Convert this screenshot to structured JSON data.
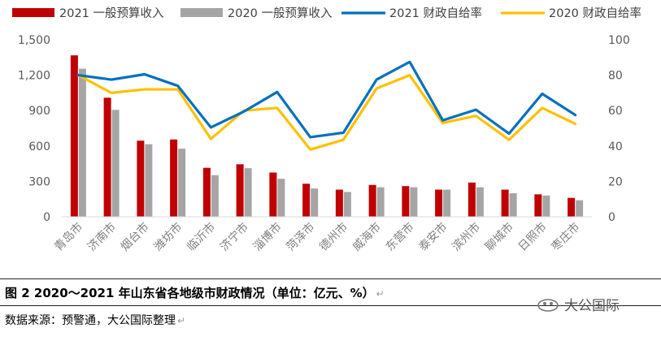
{
  "figure": {
    "caption": "图 2   2020～2021 年山东省各地级市财政情况（单位：亿元、%）",
    "caption_mark": "↵",
    "source": "数据来源：预警通，大公国际整理",
    "source_mark": "↵",
    "brand": "大公国际",
    "brand_icon": "dagong-logo-icon"
  },
  "chart_data": {
    "type": "bar",
    "categories": [
      "青岛市",
      "济南市",
      "烟台市",
      "潍坊市",
      "临沂市",
      "济宁市",
      "淄博市",
      "菏泽市",
      "德州市",
      "威海市",
      "东营市",
      "泰安市",
      "滨州市",
      "聊城市",
      "日照市",
      "枣庄市"
    ],
    "bar_series": [
      {
        "name": "2021 一般预算收入",
        "color": "#C00000",
        "values": [
          1368,
          1009,
          645,
          655,
          415,
          445,
          375,
          280,
          230,
          270,
          260,
          230,
          290,
          230,
          190,
          160
        ]
      },
      {
        "name": "2020 一般预算收入",
        "color": "#A5A5A5",
        "values": [
          1255,
          906,
          615,
          577,
          353,
          412,
          322,
          240,
          210,
          250,
          250,
          230,
          250,
          200,
          180,
          140
        ]
      }
    ],
    "line_series": [
      {
        "name": "2021 财政自给率",
        "color": "#0070C0",
        "values": [
          80,
          77.5,
          80.5,
          74,
          50.5,
          59.5,
          70.5,
          45,
          47.5,
          77.5,
          87.5,
          54.5,
          60.5,
          47,
          69.5,
          57.5
        ]
      },
      {
        "name": "2020 财政自给率",
        "color": "#FFC000",
        "values": [
          80,
          70,
          72,
          72,
          44,
          60,
          61.5,
          38,
          43.5,
          72.5,
          80,
          53,
          57,
          43.5,
          61.5,
          52.5
        ]
      }
    ],
    "y_left": {
      "ylim": [
        0,
        1500
      ],
      "ticks": [
        0,
        300,
        600,
        900,
        1200,
        1500
      ],
      "tick_labels": [
        "0",
        "300",
        "600",
        "900",
        "1,200",
        "1,500"
      ]
    },
    "y_right": {
      "ylim": [
        0,
        100
      ],
      "ticks": [
        0,
        20,
        40,
        60,
        80,
        100
      ],
      "tick_labels": [
        "0",
        "20",
        "40",
        "60",
        "80",
        "100"
      ]
    },
    "legend_position": "top",
    "grid": false
  }
}
